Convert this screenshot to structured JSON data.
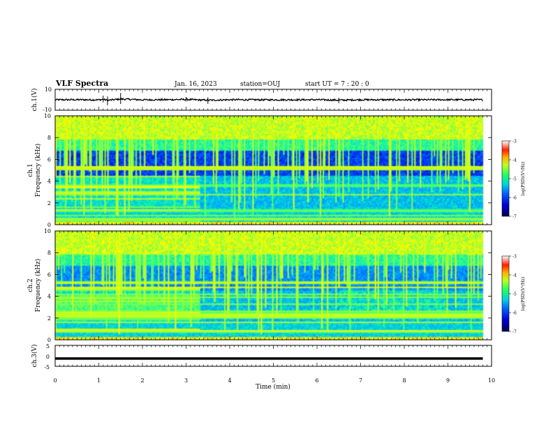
{
  "header": {
    "title": "VLF Spectra",
    "date": "Jan. 16, 2023",
    "station": "station=OUJ",
    "start": "start UT =  7 : 20 : 0"
  },
  "chart_data": [
    {
      "type": "line",
      "name": "ch1-waveform",
      "ylabel": "ch.1(V)",
      "ylim": [
        -10,
        10
      ],
      "y_ticks": [
        "10",
        "-10"
      ],
      "x": [
        0,
        0.5,
        1.0,
        1.1,
        1.2,
        1.5,
        2.0,
        2.5,
        3.0,
        3.5,
        4.0,
        5.0,
        6.0,
        6.5,
        7.0,
        8.0,
        9.0,
        9.8
      ],
      "values": [
        0,
        0.4,
        -0.5,
        3.0,
        -4.0,
        5.0,
        -0.4,
        0.3,
        2.0,
        -3.0,
        0.2,
        -0.3,
        0.3,
        -2.5,
        0.2,
        -0.3,
        0.2,
        0
      ]
    },
    {
      "type": "heatmap",
      "name": "ch1-spectrogram",
      "ylabel": "ch.1 Frequency (kHz)",
      "ylim": [
        0,
        10
      ],
      "y_ticks": [
        "0",
        "2",
        "4",
        "6",
        "8",
        "10"
      ],
      "colorbar_label": "log(PSD)(V²/Hz)",
      "colorbar_range": [
        -7,
        -3
      ],
      "colorbar_ticks": [
        "-3",
        "-4",
        "-5",
        "-6",
        "-7"
      ]
    },
    {
      "type": "heatmap",
      "name": "ch2-spectrogram",
      "ylabel": "ch.2 Frequency (kHz)",
      "ylim": [
        0,
        10
      ],
      "y_ticks": [
        "0",
        "2",
        "4",
        "6",
        "8",
        "10"
      ],
      "colorbar_label": "log(PSD)(V²/Hz)",
      "colorbar_range": [
        -7,
        -3
      ],
      "colorbar_ticks": [
        "-3",
        "-4",
        "-5",
        "-6",
        "-7"
      ]
    },
    {
      "type": "line",
      "name": "ch3-waveform",
      "ylabel": "ch.3(V)",
      "ylim": [
        -5,
        5
      ],
      "y_ticks": [
        "5",
        "0",
        "-5"
      ],
      "x": [
        0,
        9.8
      ],
      "values": [
        -1.3,
        -1.3
      ]
    }
  ],
  "x_axis": {
    "label": "Time (min)",
    "ticks": [
      "0",
      "1",
      "2",
      "3",
      "4",
      "5",
      "6",
      "7",
      "8",
      "9",
      "10"
    ],
    "range": [
      0,
      10
    ],
    "data_end": 9.8
  },
  "colors": {
    "colormap": [
      "#000060",
      "#0000c8",
      "#0050ff",
      "#00a0ff",
      "#00e0d0",
      "#30ff80",
      "#a0ff30",
      "#ffff00",
      "#ffa000",
      "#ff2000",
      "#ffffff"
    ]
  }
}
